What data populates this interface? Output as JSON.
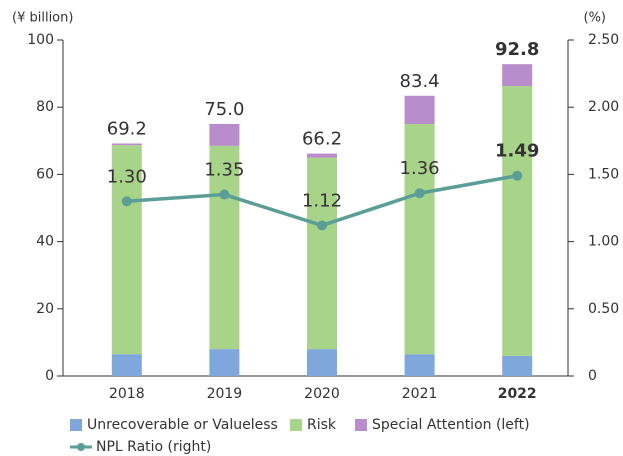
{
  "chart_data": {
    "type": "stacked_bar_line",
    "y_unit_label": "(¥ billion)",
    "y2_unit_label": "(%)",
    "categories": [
      "2018",
      "2019",
      "2020",
      "2021",
      "2022"
    ],
    "highlight_index": 4,
    "series": [
      {
        "name": "Unrecoverable or Valueless",
        "color": "#7fa7dc",
        "values": [
          6.5,
          8.0,
          8.0,
          6.5,
          6.0
        ]
      },
      {
        "name": "Risk",
        "color": "#a8d48a",
        "values": [
          62.2,
          60.5,
          57.0,
          68.5,
          80.3
        ]
      },
      {
        "name": "Special Attention (left)",
        "color": "#b98ccb",
        "values": [
          0.5,
          6.5,
          1.2,
          8.4,
          6.5
        ]
      },
      {
        "name": "NPL Ratio (right)",
        "color": "#5b9e96",
        "axis": "y2",
        "values": [
          1.3,
          1.35,
          1.12,
          1.36,
          1.49
        ],
        "value_labels": [
          "1.30",
          "1.35",
          "1.12",
          "1.36",
          "1.49"
        ]
      }
    ],
    "totals": {
      "values": [
        69.2,
        75.0,
        66.2,
        83.4,
        92.8
      ],
      "value_labels": [
        "69.2",
        "75.0",
        "66.2",
        "83.4",
        "92.8"
      ]
    },
    "ylim": [
      0,
      100
    ],
    "yticks": [
      0,
      20,
      40,
      60,
      80,
      100
    ],
    "y2lim": [
      0,
      2.5
    ],
    "y2ticks": [
      0,
      {
        "value": 0.5,
        "label": "0.50"
      },
      {
        "value": 1.0,
        "label": "1.00"
      },
      {
        "value": 1.5,
        "label": "1.50"
      },
      {
        "value": 2.0,
        "label": "2.00"
      },
      {
        "value": 2.5,
        "label": "2.50"
      }
    ]
  }
}
